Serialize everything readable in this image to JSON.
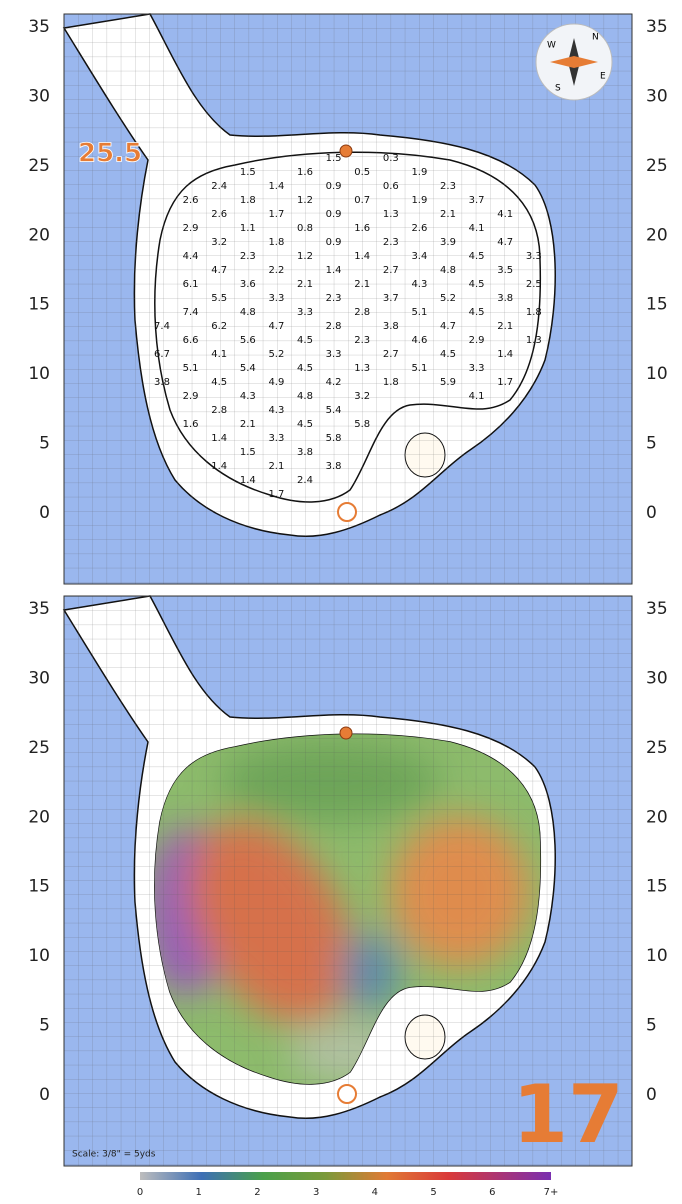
{
  "header": {
    "total_break": "25.5",
    "hole_number": "17"
  },
  "compass": {
    "n": "N",
    "e": "E",
    "s": "S",
    "w": "W"
  },
  "axis": {
    "labels": [
      35,
      30,
      25,
      20,
      15,
      10,
      5,
      0
    ]
  },
  "slope_grid": {
    "rows": [
      [
        null,
        null,
        null,
        null,
        null,
        null,
        1.5,
        null,
        0.3,
        null,
        null,
        null,
        null,
        null
      ],
      [
        null,
        null,
        null,
        1.5,
        null,
        1.6,
        null,
        0.5,
        null,
        1.9,
        null,
        null,
        null,
        null
      ],
      [
        null,
        null,
        2.4,
        null,
        1.4,
        null,
        0.9,
        null,
        0.6,
        null,
        2.3,
        null,
        null,
        null
      ],
      [
        null,
        2.6,
        null,
        1.8,
        null,
        1.2,
        null,
        0.7,
        null,
        1.9,
        null,
        3.7,
        null,
        null
      ],
      [
        null,
        null,
        2.6,
        null,
        1.7,
        null,
        0.9,
        null,
        1.3,
        null,
        2.1,
        null,
        4.1,
        null
      ],
      [
        null,
        2.9,
        null,
        1.1,
        null,
        0.8,
        null,
        1.6,
        null,
        2.6,
        null,
        4.1,
        null,
        null
      ],
      [
        null,
        null,
        3.2,
        null,
        1.8,
        null,
        0.9,
        null,
        2.3,
        null,
        3.9,
        null,
        4.7,
        null
      ],
      [
        null,
        4.4,
        null,
        2.3,
        null,
        1.2,
        null,
        1.4,
        null,
        3.4,
        null,
        4.5,
        null,
        3.3
      ],
      [
        null,
        null,
        4.7,
        null,
        2.2,
        null,
        1.4,
        null,
        2.7,
        null,
        4.8,
        null,
        3.5,
        null
      ],
      [
        null,
        6.1,
        null,
        3.6,
        null,
        2.1,
        null,
        2.1,
        null,
        4.3,
        null,
        4.5,
        null,
        2.5
      ],
      [
        null,
        null,
        5.5,
        null,
        3.3,
        null,
        2.3,
        null,
        3.7,
        null,
        5.2,
        null,
        3.8,
        null
      ],
      [
        null,
        7.4,
        null,
        4.8,
        null,
        3.3,
        null,
        2.8,
        null,
        5.1,
        null,
        4.5,
        null,
        1.8
      ],
      [
        7.4,
        null,
        6.2,
        null,
        4.7,
        null,
        2.8,
        null,
        3.8,
        null,
        4.7,
        null,
        2.1,
        null
      ],
      [
        null,
        6.6,
        null,
        5.6,
        null,
        4.5,
        null,
        2.3,
        null,
        4.6,
        null,
        2.9,
        null,
        1.3
      ],
      [
        6.7,
        null,
        4.1,
        null,
        5.2,
        null,
        3.3,
        null,
        2.7,
        null,
        4.5,
        null,
        1.4,
        null
      ],
      [
        null,
        5.1,
        null,
        5.4,
        null,
        4.5,
        null,
        1.3,
        null,
        5.1,
        null,
        3.3,
        null,
        null
      ],
      [
        3.8,
        null,
        4.5,
        null,
        4.9,
        null,
        4.2,
        null,
        1.8,
        null,
        5.9,
        null,
        1.7,
        null
      ],
      [
        null,
        2.9,
        null,
        4.3,
        null,
        4.8,
        null,
        3.2,
        null,
        null,
        null,
        4.1,
        null,
        null
      ],
      [
        null,
        null,
        2.8,
        null,
        4.3,
        null,
        5.4,
        null,
        null,
        null,
        null,
        null,
        null,
        null
      ],
      [
        null,
        1.6,
        null,
        2.1,
        null,
        4.5,
        null,
        5.8,
        null,
        null,
        null,
        null,
        null,
        null
      ],
      [
        null,
        null,
        1.4,
        null,
        3.3,
        null,
        5.8,
        null,
        null,
        null,
        null,
        null,
        null,
        null
      ],
      [
        null,
        null,
        null,
        1.5,
        null,
        3.8,
        null,
        null,
        null,
        null,
        null,
        null,
        null,
        null
      ],
      [
        null,
        null,
        1.4,
        null,
        2.1,
        null,
        3.8,
        null,
        null,
        null,
        null,
        null,
        null,
        null
      ],
      [
        null,
        null,
        null,
        1.4,
        null,
        2.4,
        null,
        null,
        null,
        null,
        null,
        null,
        null,
        null
      ],
      [
        null,
        null,
        null,
        null,
        1.7,
        null,
        null,
        null,
        null,
        null,
        null,
        null,
        null,
        null
      ]
    ]
  },
  "scale_note": "Scale: 3/8\" = 5yds",
  "legend": {
    "labels": [
      0,
      1,
      2,
      3,
      4,
      5,
      6,
      "7+"
    ]
  }
}
